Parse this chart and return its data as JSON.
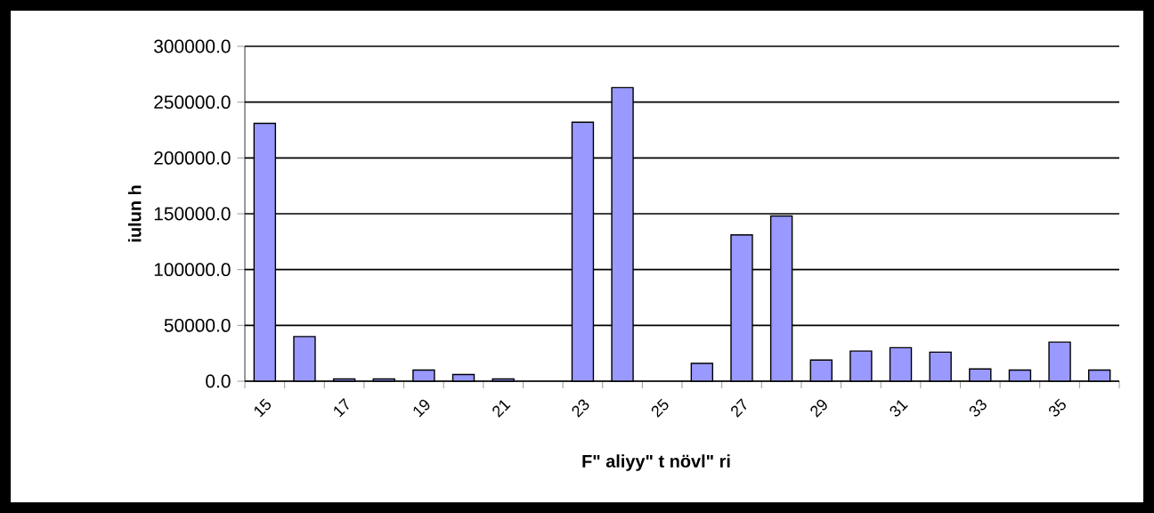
{
  "chart_data": {
    "type": "bar",
    "xlabel": "F\" aliyy\" t növl\" ri",
    "ylabel": "iulun h",
    "categories": [
      "15",
      null,
      "17",
      null,
      "19",
      null,
      "21",
      null,
      "23",
      null,
      "25",
      null,
      "27",
      null,
      "29",
      null,
      "31",
      null,
      "33",
      null,
      "35",
      null
    ],
    "values": [
      231000,
      40000,
      2000,
      2000,
      10000,
      6000,
      2000,
      null,
      232000,
      263000,
      null,
      16000,
      131000,
      148000,
      19000,
      27000,
      30000,
      26000,
      11000,
      10000,
      35000,
      10000
    ],
    "color": "#9999ff",
    "ylim": [
      0,
      300000
    ],
    "yticks": [
      {
        "value": 0,
        "label": "0.0"
      },
      {
        "value": 50000,
        "label": "50000.0"
      },
      {
        "value": 100000,
        "label": "100000.0"
      },
      {
        "value": 150000,
        "label": "150000.0"
      },
      {
        "value": 200000,
        "label": "200000.0"
      },
      {
        "value": 250000,
        "label": "250000.0"
      },
      {
        "value": 300000,
        "label": "300000.0"
      }
    ],
    "grid": "y"
  }
}
